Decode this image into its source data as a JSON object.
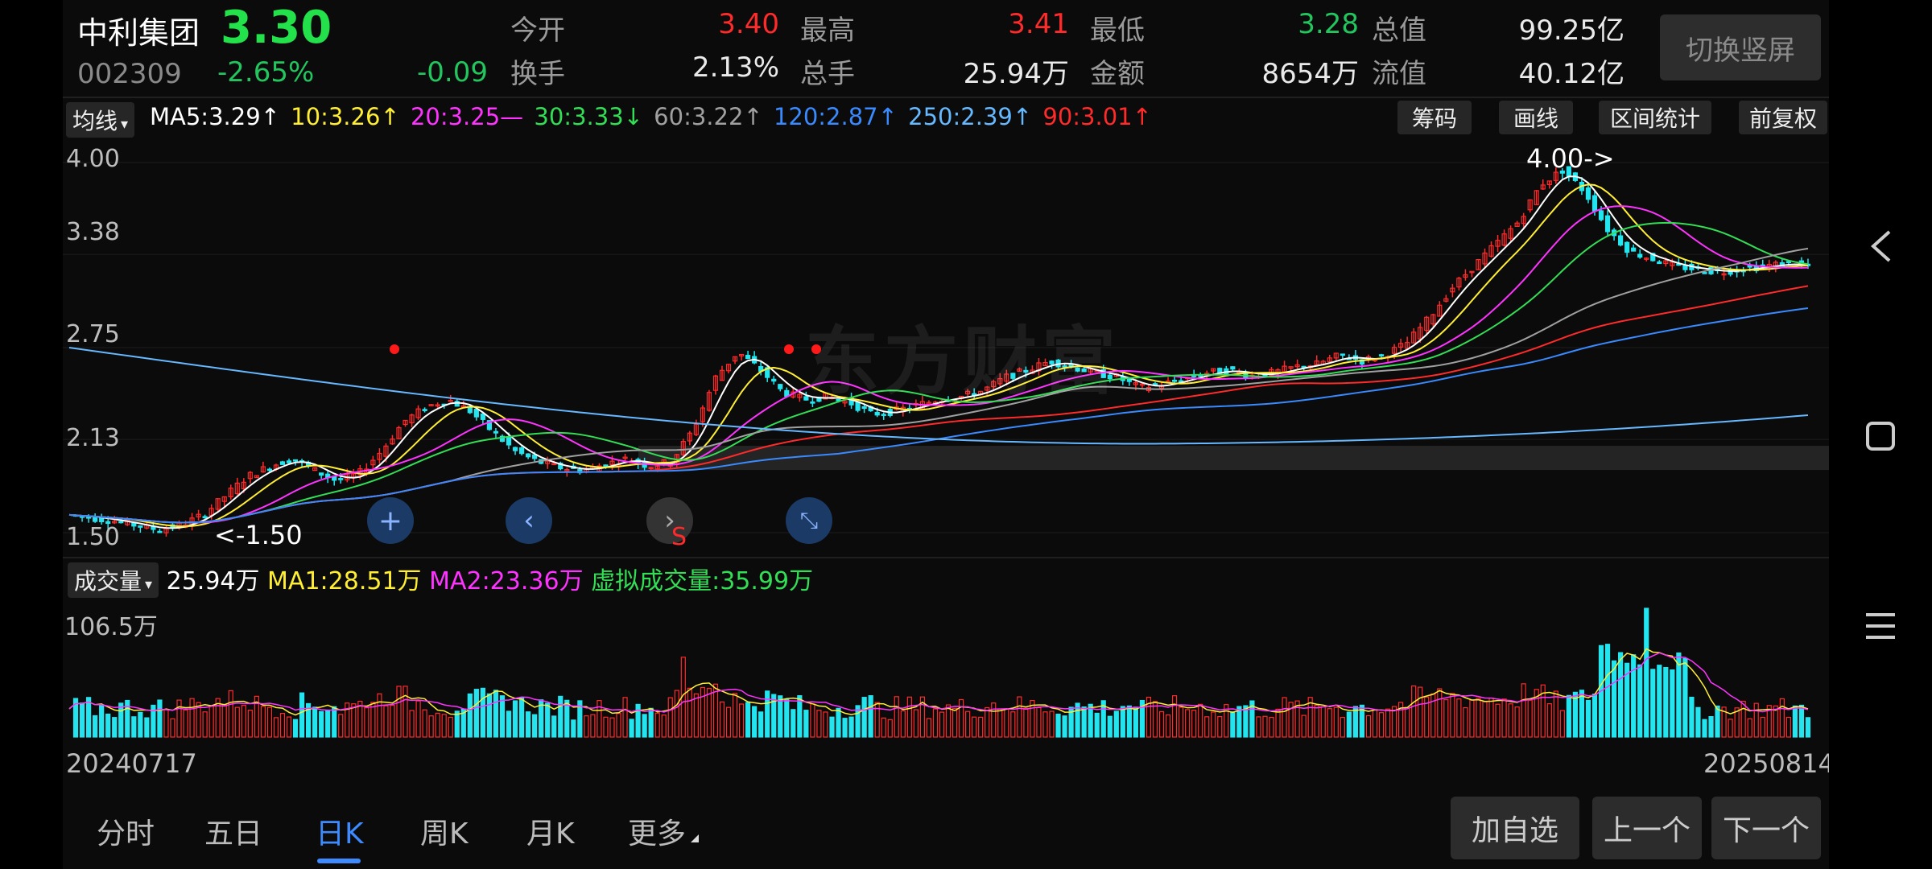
{
  "header": {
    "name": "中利集团",
    "code": "002309",
    "price": "3.30",
    "change_pct": "-2.65%",
    "change_amt": "-0.09",
    "metrics": {
      "open_label": "今开",
      "open_val": "3.40",
      "high_label": "最高",
      "high_val": "3.41",
      "low_label": "最低",
      "low_val": "3.28",
      "mktcap_label": "总值",
      "mktcap_val": "99.25亿",
      "turnover_label": "换手",
      "turnover_val": "2.13%",
      "volume_label": "总手",
      "volume_val": "25.94万",
      "amount_label": "金额",
      "amount_val": "8654万",
      "float_label": "流值",
      "float_val": "40.12亿"
    },
    "switch_button": "切换竖屏"
  },
  "indicator_bar": {
    "dropdown": "均线",
    "ma5": "MA5:3.29↑",
    "ma10": "10:3.26↑",
    "ma20": "20:3.25—",
    "ma30": "30:3.33↓",
    "ma60": "60:3.22↑",
    "ma120": "120:2.87↑",
    "ma250": "250:2.39↑",
    "ma90": "90:3.01↑",
    "buttons": [
      "筹码",
      "画线",
      "区间统计",
      "前复权"
    ]
  },
  "price_axis": [
    "4.00",
    "3.38",
    "2.75",
    "2.13",
    "1.50"
  ],
  "watermark": "东方财富",
  "annotations": {
    "high_marker": "4.00->",
    "low_marker": "<-1.50",
    "s_marker": "S"
  },
  "volume_bar": {
    "dropdown": "成交量",
    "value": "25.94万",
    "ma1": "MA1:28.51万",
    "ma2": "MA2:23.36万",
    "virtual": "虚拟成交量:35.99万",
    "axis_max": "106.5万"
  },
  "dates": {
    "start": "20240717",
    "end": "20250814"
  },
  "tabs": [
    "分时",
    "五日",
    "日K",
    "周K",
    "月K",
    "更多"
  ],
  "active_tab": "日K",
  "footer_buttons": [
    "加自选",
    "上一个",
    "下一个"
  ],
  "colors": {
    "up": "#ff2a2a",
    "down": "#22e5f0",
    "ma5": "#ffffff",
    "ma10": "#ffee33",
    "ma20": "#ff33ff",
    "ma30": "#33dd55",
    "ma60": "#a0a0a0",
    "ma120": "#3a8aff",
    "ma250": "#66b8ff",
    "ma90": "#ff2a2a"
  },
  "chart_data": {
    "type": "candlestick",
    "x_range": [
      "20240717",
      "20250814"
    ],
    "ylim": [
      1.5,
      4.0
    ],
    "y_ticks": [
      4.0,
      3.38,
      2.75,
      2.13,
      1.5
    ],
    "close_trend": [
      1.62,
      1.6,
      1.58,
      1.55,
      1.52,
      1.55,
      1.62,
      1.75,
      1.88,
      1.95,
      2.0,
      1.92,
      1.85,
      1.9,
      2.05,
      2.25,
      2.35,
      2.4,
      2.32,
      2.18,
      2.05,
      1.98,
      1.94,
      1.92,
      1.96,
      2.0,
      1.95,
      1.98,
      2.2,
      2.55,
      2.72,
      2.6,
      2.45,
      2.4,
      2.42,
      2.38,
      2.3,
      2.32,
      2.36,
      2.4,
      2.42,
      2.46,
      2.55,
      2.6,
      2.66,
      2.62,
      2.58,
      2.55,
      2.48,
      2.5,
      2.54,
      2.58,
      2.6,
      2.56,
      2.58,
      2.62,
      2.64,
      2.7,
      2.66,
      2.7,
      2.78,
      2.95,
      3.15,
      3.3,
      3.45,
      3.6,
      3.85,
      3.95,
      3.8,
      3.55,
      3.4,
      3.35,
      3.3,
      3.28,
      3.26,
      3.28,
      3.3,
      3.32,
      3.3
    ],
    "volume_max_label": "106.5万"
  }
}
